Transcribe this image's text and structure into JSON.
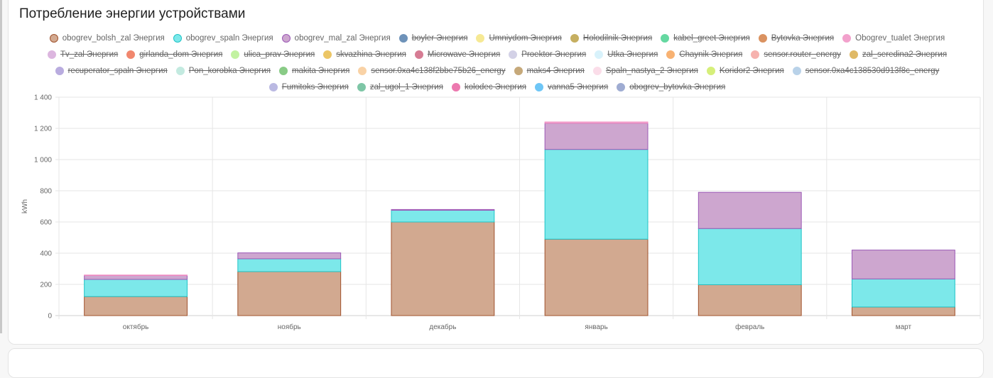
{
  "card": {
    "title": "Потребление энергии устройствами"
  },
  "chart_data": {
    "type": "bar",
    "stacked": true,
    "title": "Потребление энергии устройствами",
    "xlabel": "",
    "ylabel": "kWh",
    "ylim": [
      0,
      1400
    ],
    "yticks": [
      0,
      200,
      400,
      600,
      800,
      1000,
      1200,
      1400
    ],
    "ytick_labels": [
      "0",
      "200",
      "400",
      "600",
      "800",
      "1 000",
      "1 200",
      "1 400"
    ],
    "grid": true,
    "legend_position": "top",
    "categories": [
      "октябрь",
      "ноябрь",
      "декабрь",
      "январь",
      "февраль",
      "март"
    ],
    "series": [
      {
        "name": "obogrev_bolsh_zal Энергия",
        "color": "#a0522d",
        "fill": "#d2a990",
        "hidden": false,
        "values": [
          122,
          282,
          600,
          490,
          198,
          55
        ]
      },
      {
        "name": "obogrev_spaln Энергия",
        "color": "#20c3c6",
        "fill": "#7ce8ea",
        "hidden": false,
        "values": [
          110,
          82,
          75,
          575,
          360,
          180
        ]
      },
      {
        "name": "obogrev_mal_zal Энергия",
        "color": "#9b59b6",
        "fill": "#cda6cf",
        "hidden": false,
        "values": [
          25,
          38,
          5,
          168,
          232,
          185
        ]
      },
      {
        "name": "boyler Энергия",
        "color": "#4a78a8",
        "hidden": true,
        "values": []
      },
      {
        "name": "Umniydom Энергия",
        "color": "#f5e47a",
        "hidden": true,
        "values": []
      },
      {
        "name": "Holodilnik Энергия",
        "color": "#b89c3a",
        "hidden": true,
        "values": []
      },
      {
        "name": "kabel_greet Энергия",
        "color": "#3fcf8a",
        "hidden": true,
        "values": []
      },
      {
        "name": "Bytovka Энергия",
        "color": "#d2783a",
        "hidden": true,
        "values": []
      },
      {
        "name": "Obogrev_tualet Энергия",
        "color": "#f08ac0",
        "hidden": false,
        "values": [
          3,
          0,
          0,
          8,
          0,
          0
        ]
      },
      {
        "name": "Tv_zal Энергия",
        "color": "#d4a5d8",
        "hidden": true,
        "values": []
      },
      {
        "name": "girlanda_dom Энергия",
        "color": "#ee6a4a",
        "hidden": true,
        "values": []
      },
      {
        "name": "ulica_prav Энергия",
        "color": "#b4ef8a",
        "hidden": true,
        "values": []
      },
      {
        "name": "skvazhina Энергия",
        "color": "#e8b840",
        "hidden": true,
        "values": []
      },
      {
        "name": "Microwave Энергия",
        "color": "#cc5c7a",
        "hidden": true,
        "values": []
      },
      {
        "name": "Proektor Энергия",
        "color": "#c9c6e0",
        "hidden": true,
        "values": []
      },
      {
        "name": "Utka Энергия",
        "color": "#cfeffb",
        "hidden": true,
        "values": []
      },
      {
        "name": "Chaynik Энергия",
        "color": "#f7a050",
        "hidden": true,
        "values": []
      },
      {
        "name": "sensor.router_energy",
        "color": "#f4a09a",
        "hidden": true,
        "values": []
      },
      {
        "name": "zal_seredina2 Энергия",
        "color": "#d8a840",
        "hidden": true,
        "values": []
      },
      {
        "name": "recuperator_spaln Энергия",
        "color": "#a898d8",
        "hidden": true,
        "values": []
      },
      {
        "name": "Pon_korobka Энергия",
        "color": "#b5e6d9",
        "hidden": true,
        "values": []
      },
      {
        "name": "makita Энергия",
        "color": "#6cbf68",
        "hidden": true,
        "values": []
      },
      {
        "name": "sensor.0xa4c138f2bbe75b26_energy",
        "color": "#f8c890",
        "hidden": true,
        "values": []
      },
      {
        "name": "maks4 Энергия",
        "color": "#b8945a",
        "hidden": true,
        "values": []
      },
      {
        "name": "Spaln_nastya_2 Энергия",
        "color": "#fbd5e4",
        "hidden": true,
        "values": []
      },
      {
        "name": "Koridor2 Энергия",
        "color": "#cdec5a",
        "hidden": true,
        "values": []
      },
      {
        "name": "sensor.0xa4c138530d913f8c_energy",
        "color": "#a8c8e4",
        "hidden": true,
        "values": []
      },
      {
        "name": "Fumitoks Энергия",
        "color": "#aaa8dc",
        "hidden": true,
        "values": []
      },
      {
        "name": "zal_ugol_1 Энергия",
        "color": "#5fb890",
        "hidden": true,
        "values": []
      },
      {
        "name": "kolodec Энергия",
        "color": "#e8589c",
        "hidden": true,
        "values": []
      },
      {
        "name": "vanna5 Энергия",
        "color": "#4ab8f4",
        "hidden": true,
        "values": []
      },
      {
        "name": "obogrev_bytovka Энергия",
        "color": "#8898c8",
        "hidden": true,
        "values": []
      }
    ]
  }
}
